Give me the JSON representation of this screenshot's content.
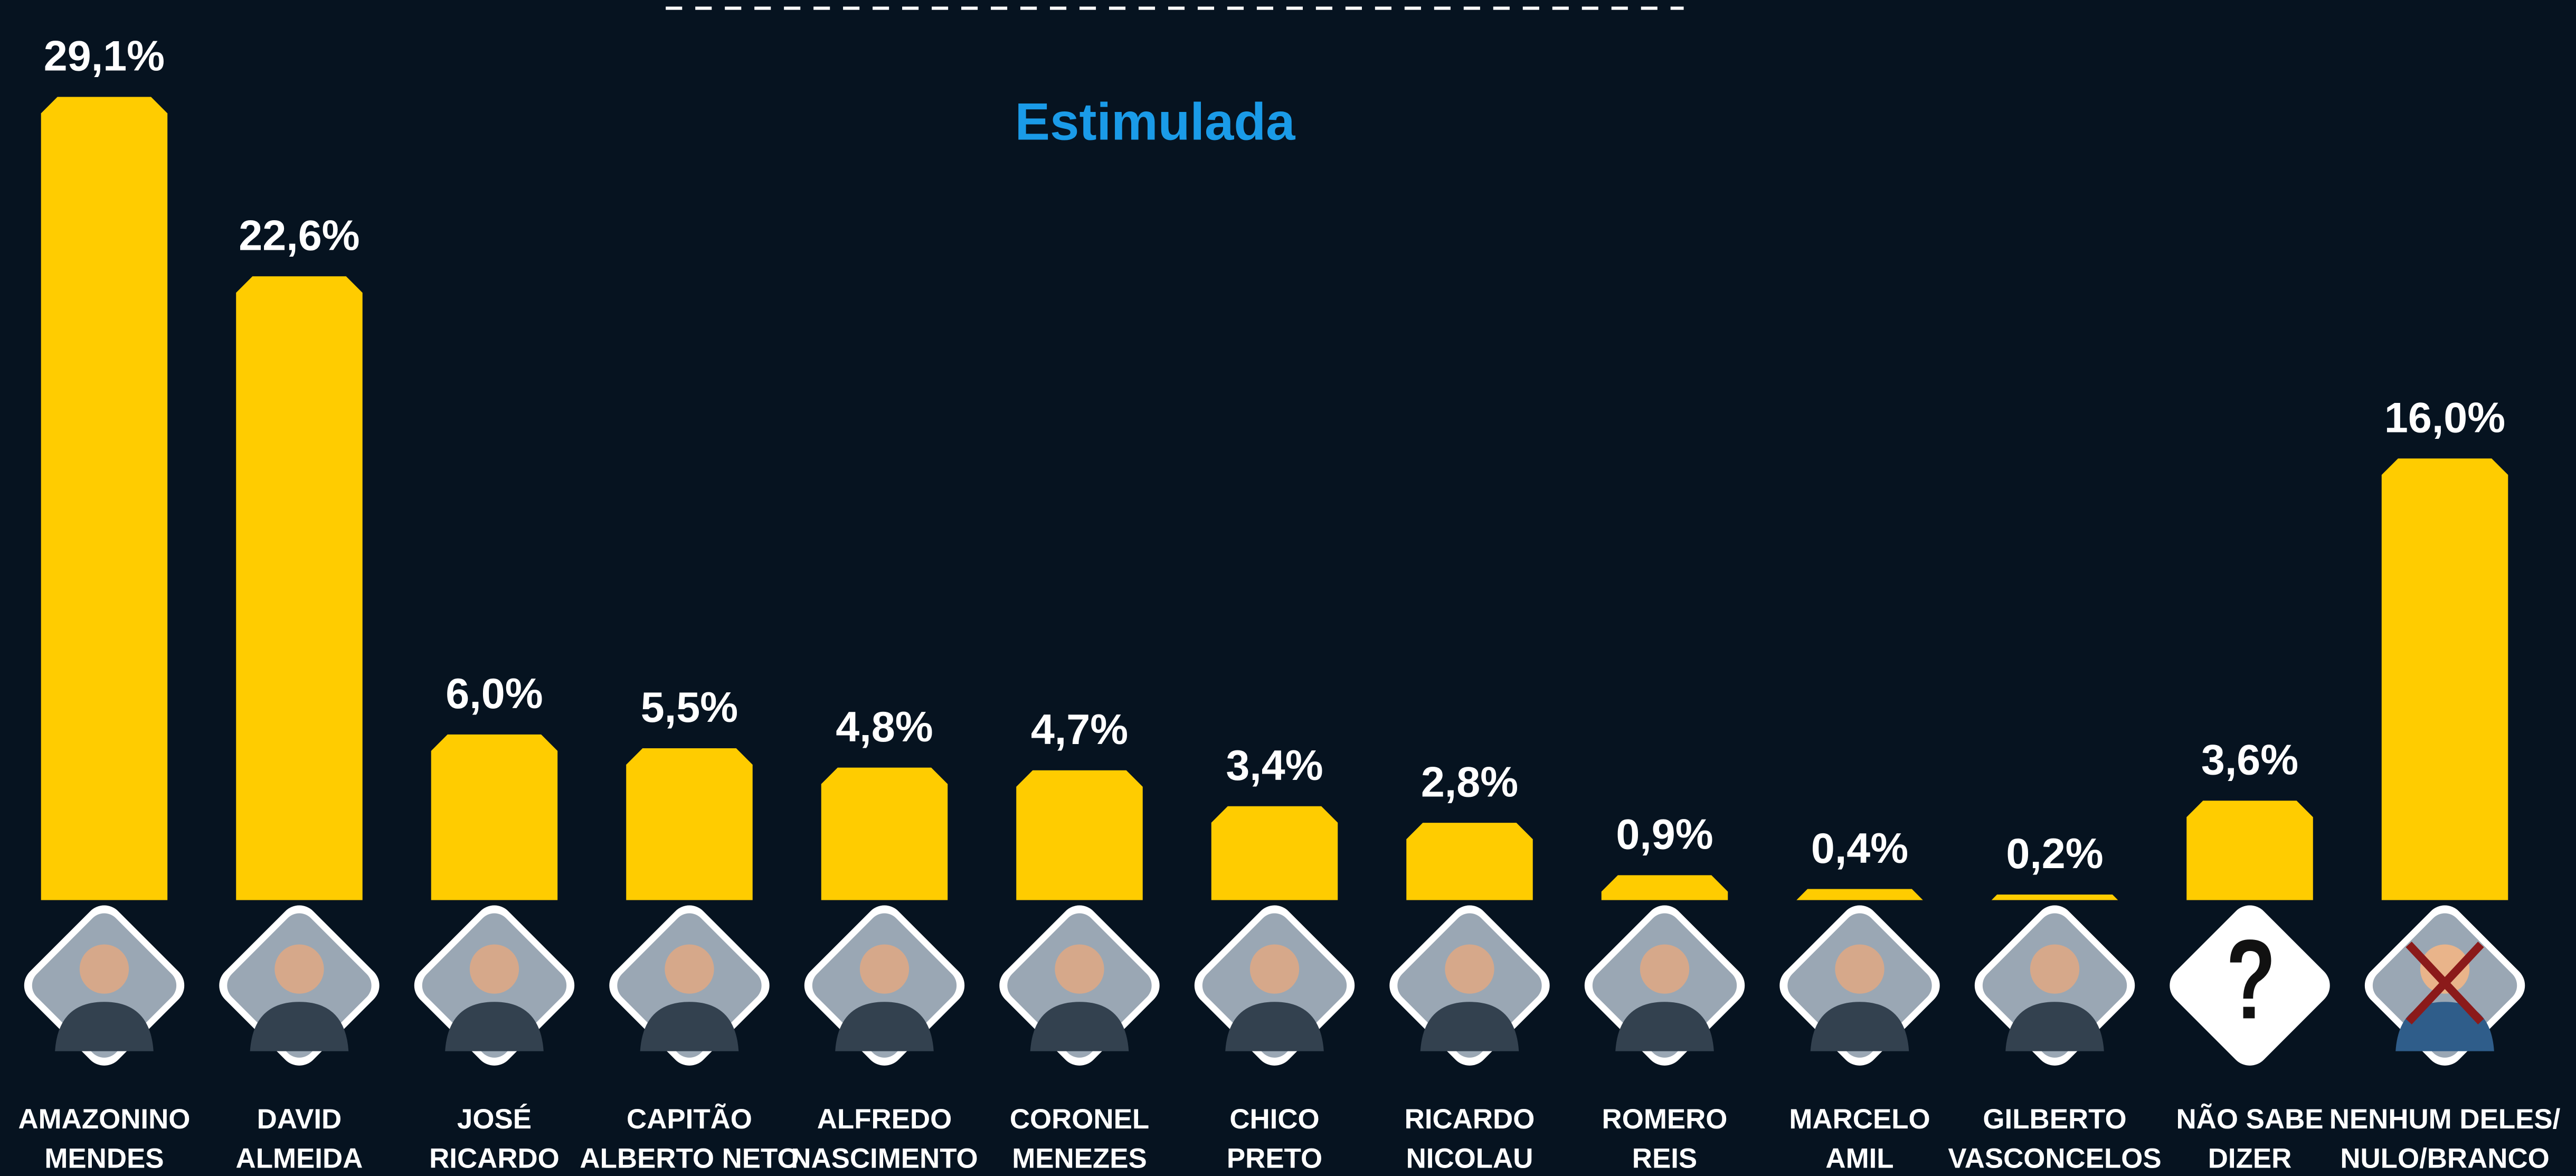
{
  "chart_data": {
    "type": "bar",
    "title": "Estimulada",
    "categories": [
      [
        "AMAZONINO",
        "MENDES"
      ],
      [
        "DAVID",
        "ALMEIDA"
      ],
      [
        "JOSÉ",
        "RICARDO"
      ],
      [
        "CAPITÃO",
        "ALBERTO NETO"
      ],
      [
        "ALFREDO",
        "NASCIMENTO"
      ],
      [
        "CORONEL",
        "MENEZES"
      ],
      [
        "CHICO",
        "PRETO"
      ],
      [
        "RICARDO",
        "NICOLAU"
      ],
      [
        "ROMERO",
        "REIS"
      ],
      [
        "MARCELO",
        "AMIL"
      ],
      [
        "GILBERTO",
        "VASCONCELOS"
      ],
      [
        "NÃO SABE",
        "DIZER"
      ],
      [
        "NENHUM DELES/",
        "NULO/BRANCO"
      ]
    ],
    "values": [
      29.1,
      22.6,
      6.0,
      5.5,
      4.8,
      4.7,
      3.4,
      2.8,
      0.9,
      0.4,
      0.2,
      3.6,
      16.0
    ],
    "value_labels": [
      "29,1%",
      "22,6%",
      "6,0%",
      "5,5%",
      "4,8%",
      "4,7%",
      "3,4%",
      "2,8%",
      "0,9%",
      "0,4%",
      "0,2%",
      "3,6%",
      "16,0%"
    ],
    "color": "#ffcc00"
  }
}
